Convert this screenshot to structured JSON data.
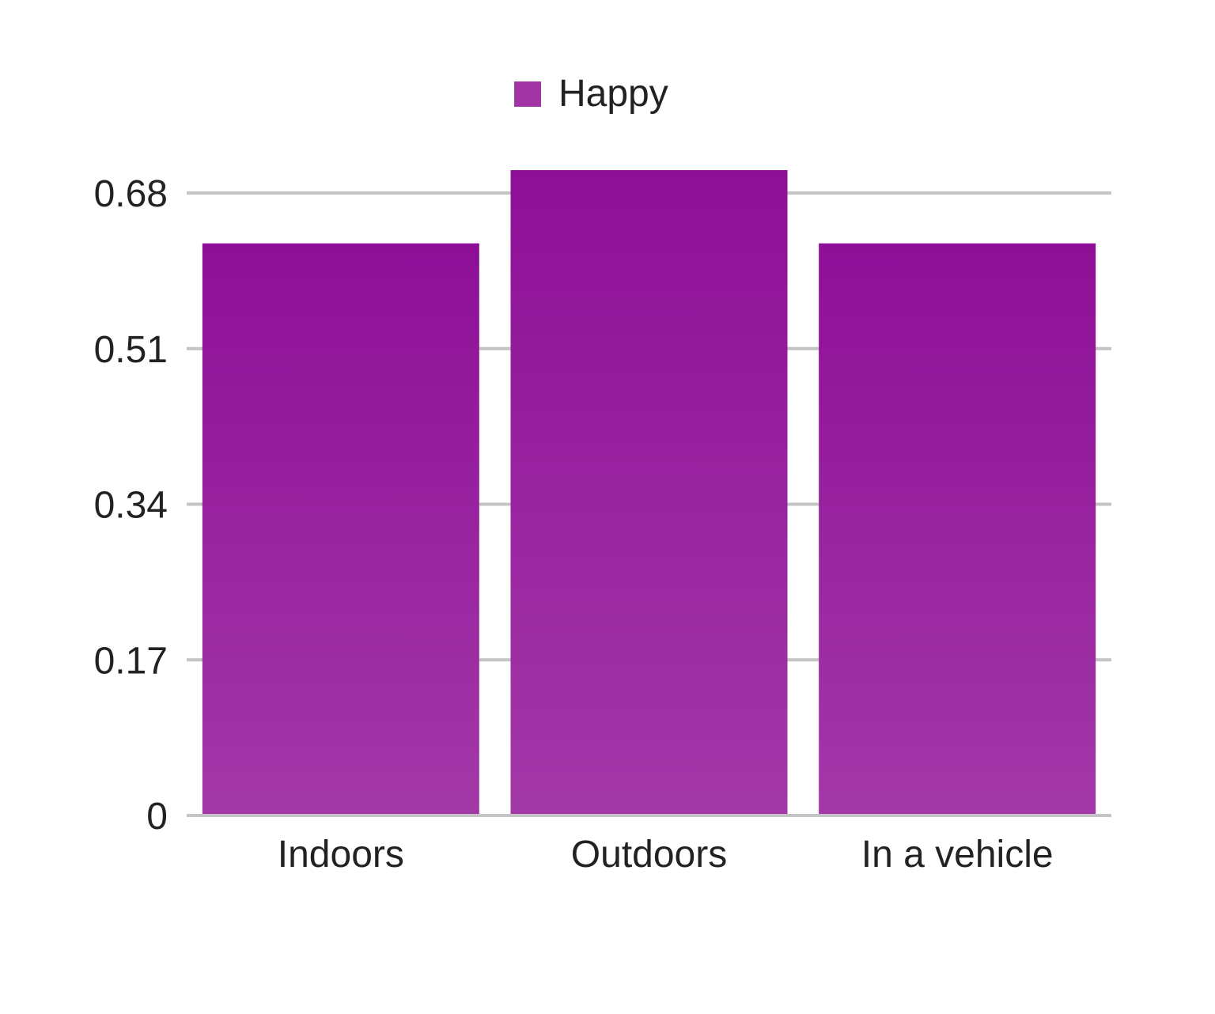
{
  "chart_data": {
    "type": "bar",
    "categories": [
      "Indoors",
      "Outdoors",
      "In a vehicle"
    ],
    "series": [
      {
        "name": "Happy",
        "values": [
          0.625,
          0.705,
          0.625
        ],
        "color": "#8e0f97"
      }
    ],
    "y_ticks": [
      "0",
      "0.17",
      "0.34",
      "0.51",
      "0.68"
    ],
    "ylim": [
      0,
      0.68
    ],
    "grid": true,
    "legend_position": "top-center"
  }
}
